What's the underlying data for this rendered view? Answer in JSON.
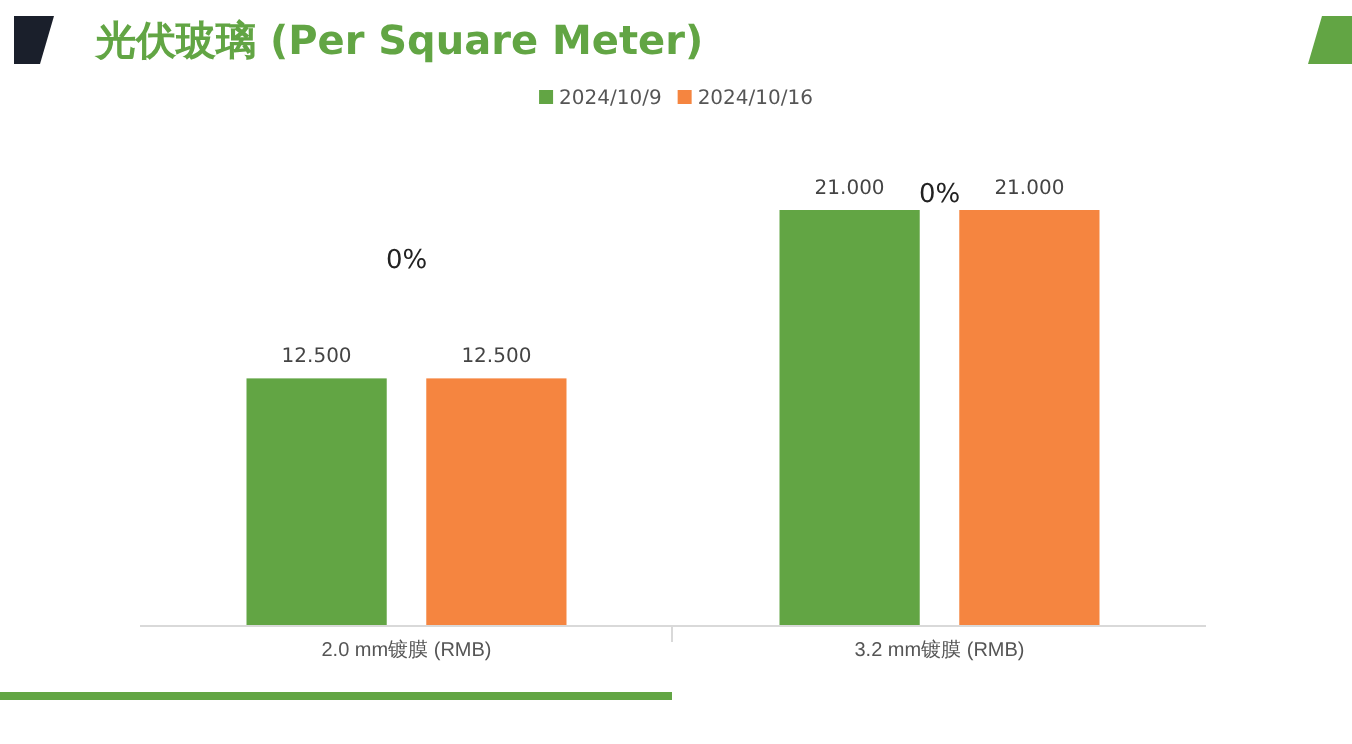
{
  "chart_data": {
    "type": "bar",
    "title": "光伏玻璃 (Per Square Meter)",
    "categories": [
      "2.0 mm镀膜 (RMB)",
      "3.2 mm镀膜 (RMB)"
    ],
    "series": [
      {
        "name": "2024/10/9",
        "color": "#62a544",
        "values": [
          12.5,
          21
        ],
        "value_labels": [
          "12.500",
          "21.000"
        ]
      },
      {
        "name": "2024/10/16",
        "color": "#f58540",
        "values": [
          12.5,
          21
        ],
        "value_labels": [
          "12.500",
          "21.000"
        ]
      }
    ],
    "annotations": [
      "0%",
      "0%"
    ],
    "relative": false,
    "legend": "top",
    "grid": false
  }
}
